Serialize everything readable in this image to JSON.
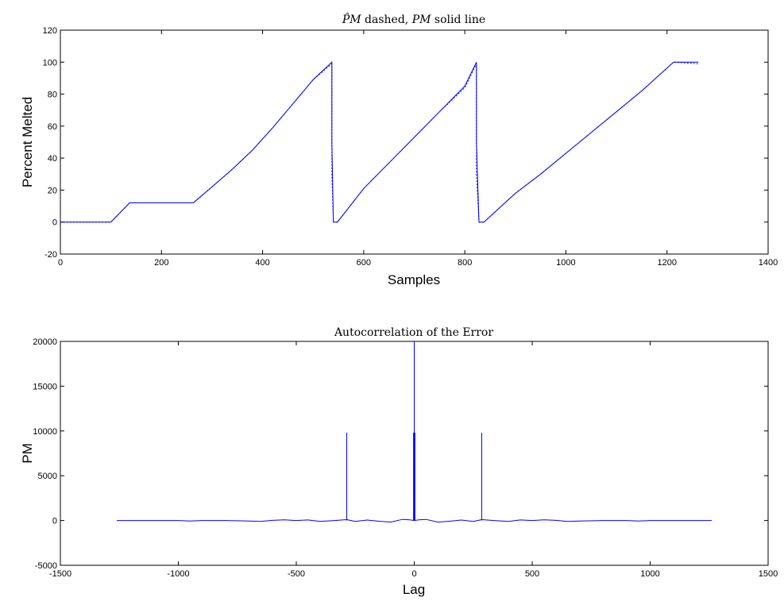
{
  "chart_data": [
    {
      "type": "line",
      "title_parts": {
        "hat": "P̂M",
        "mid": " dashed, ",
        "pm": "PM",
        "end": " solid line"
      },
      "xlabel": "Samples",
      "ylabel": "Percent Melted",
      "xlim": [
        0,
        1400
      ],
      "ylim": [
        -20,
        120
      ],
      "xticks": [
        "0",
        "200",
        "400",
        "600",
        "800",
        "1000",
        "1200",
        "1400"
      ],
      "yticks": [
        "-20",
        "0",
        "20",
        "40",
        "60",
        "80",
        "100",
        "120"
      ],
      "grid": false,
      "legend": "none",
      "line_color": "#0000ff",
      "series": [
        {
          "style": "solid",
          "x": [
            0,
            100,
            137,
            263,
            300,
            340,
            380,
            420,
            460,
            500,
            537,
            537,
            540,
            548,
            600,
            650,
            700,
            750,
            800,
            823,
            823,
            828,
            838,
            900,
            950,
            1000,
            1050,
            1100,
            1150,
            1213,
            1262
          ],
          "y": [
            0,
            0,
            12,
            12,
            22,
            33,
            45,
            59,
            74,
            89,
            100,
            50,
            0,
            0,
            21,
            37,
            53,
            69,
            85,
            100,
            50,
            0,
            0,
            18,
            30,
            43,
            56,
            69,
            82,
            100,
            100
          ]
        },
        {
          "style": "dashed",
          "x": [
            0,
            100,
            137,
            263,
            300,
            340,
            380,
            420,
            460,
            500,
            537,
            537,
            540,
            548,
            600,
            650,
            700,
            750,
            800,
            823,
            823,
            828,
            838,
            900,
            950,
            1000,
            1050,
            1100,
            1150,
            1213,
            1262
          ],
          "y": [
            0,
            0,
            12,
            12,
            22,
            33,
            45,
            59,
            74,
            89,
            99,
            30,
            0,
            0,
            21,
            37,
            53,
            69,
            84,
            99,
            30,
            0,
            0,
            18,
            30,
            43,
            56,
            69,
            82,
            100,
            99
          ]
        }
      ]
    },
    {
      "type": "line",
      "title": "Autocorrelation of the Error",
      "xlabel": "Lag",
      "ylabel": "PM",
      "xlim": [
        -1500,
        1500
      ],
      "ylim": [
        -5000,
        20000
      ],
      "xticks": [
        "-1500",
        "-1000",
        "-500",
        "0",
        "500",
        "1000",
        "1500"
      ],
      "yticks": [
        "-5000",
        "0",
        "5000",
        "10000",
        "15000",
        "20000"
      ],
      "grid": false,
      "legend": "none",
      "line_color": "#0000ff",
      "baseline": {
        "x": [
          -1261,
          -1100,
          -1000,
          -950,
          -900,
          -800,
          -700,
          -650,
          -600,
          -550,
          -500,
          -450,
          -400,
          -350,
          -286,
          -250,
          -200,
          -150,
          -100,
          -50,
          -20,
          0,
          20,
          50,
          100,
          150,
          200,
          250,
          286,
          350,
          400,
          450,
          500,
          550,
          600,
          650,
          700,
          800,
          900,
          950,
          1000,
          1100,
          1261
        ],
        "y": [
          0,
          0,
          0,
          -50,
          0,
          0,
          -50,
          -100,
          20,
          80,
          0,
          60,
          -100,
          -30,
          100,
          -100,
          50,
          -80,
          -180,
          120,
          80,
          0,
          80,
          120,
          -180,
          -80,
          50,
          -100,
          100,
          -30,
          -100,
          60,
          0,
          80,
          20,
          -100,
          -50,
          0,
          0,
          -50,
          0,
          0,
          0
        ]
      },
      "spikes": [
        {
          "x": -286,
          "y": 9800
        },
        {
          "x": -3,
          "y": 9800
        },
        {
          "x": 0,
          "y": 20000
        },
        {
          "x": 3,
          "y": 9800
        },
        {
          "x": 286,
          "y": 9800
        }
      ]
    }
  ]
}
